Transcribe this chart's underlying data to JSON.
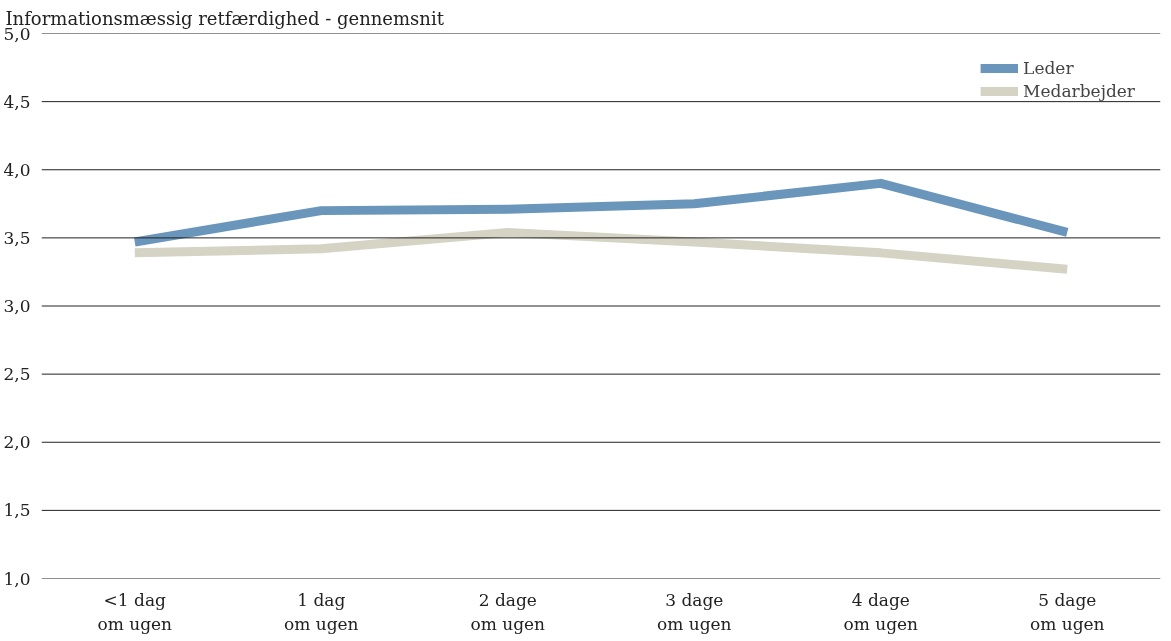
{
  "chart_data": {
    "type": "line",
    "ylabel": "Informationsmæssig retfærdighed - gennemsnit",
    "categories": [
      "<1 dag\nom ugen",
      "1 dag\nom ugen",
      "2 dage\nom ugen",
      "3 dage\nom ugen",
      "4 dage\nom ugen",
      "5 dage\nom ugen"
    ],
    "series": [
      {
        "name": "Leder",
        "color": "#6a96bb",
        "values": [
          3.47,
          3.7,
          3.71,
          3.75,
          3.9,
          3.54
        ]
      },
      {
        "name": "Medarbejder",
        "color": "#d5d3c4",
        "values": [
          3.39,
          3.42,
          3.54,
          3.47,
          3.39,
          3.27
        ]
      }
    ],
    "ylim": [
      1,
      5
    ],
    "yticks": [
      {
        "value": 1,
        "label": "1,0"
      },
      {
        "value": 1.5,
        "label": "1,5"
      },
      {
        "value": 2,
        "label": "2,0"
      },
      {
        "value": 2.5,
        "label": "2,5"
      },
      {
        "value": 3,
        "label": "3,0"
      },
      {
        "value": 3.5,
        "label": "3,5"
      },
      {
        "value": 4,
        "label": "4,0"
      },
      {
        "value": 4.5,
        "label": "4,5"
      },
      {
        "value": 5,
        "label": "5,0"
      }
    ],
    "grid": "y",
    "legend": "top right",
    "marker": "none",
    "line_style": "solid"
  }
}
